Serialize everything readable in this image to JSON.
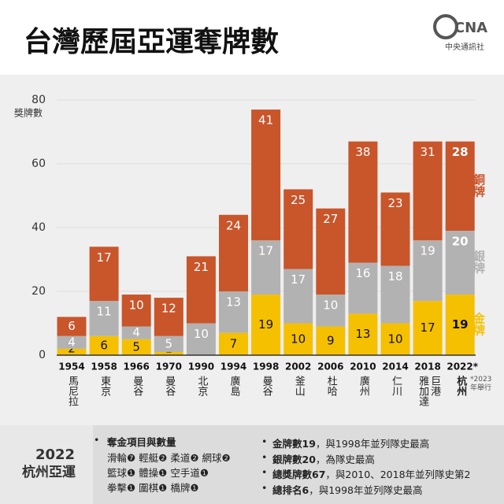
{
  "chart_data": {
    "type": "stacked-bar",
    "title": "台灣歷屆亞運奪牌數",
    "y_label": "獎牌數",
    "categories": [
      "1954",
      "1958",
      "1966",
      "1970",
      "1990",
      "1994",
      "1998",
      "2002",
      "2006",
      "2010",
      "2014",
      "2018",
      "2022*"
    ],
    "cities": [
      "馬尼拉",
      "東京",
      "曼谷",
      "曼谷",
      "北京",
      "廣島",
      "曼谷",
      "釜山",
      "杜哈",
      "廣州",
      "仁川",
      "雅加達巨港",
      "杭州"
    ],
    "series": [
      {
        "name": "金牌",
        "color": "#f5c000",
        "values": [
          2,
          6,
          5,
          1,
          0,
          7,
          19,
          10,
          9,
          13,
          10,
          17,
          19
        ]
      },
      {
        "name": "銀牌",
        "color": "#b2b2b2",
        "values": [
          4,
          11,
          4,
          5,
          10,
          13,
          17,
          17,
          10,
          16,
          18,
          19,
          20
        ]
      },
      {
        "name": "銅牌",
        "color": "#c9552b",
        "values": [
          6,
          17,
          10,
          12,
          21,
          24,
          41,
          25,
          27,
          38,
          23,
          31,
          28
        ]
      }
    ],
    "ylim": [
      0,
      80
    ],
    "yticks": [
      0,
      20,
      40,
      60,
      80
    ],
    "grid": true,
    "footnote": "*2023年舉行"
  },
  "logo": "中央通訊社",
  "logo_mark": "CNA",
  "panel": {
    "title_lines": [
      "2022",
      "杭州亞運"
    ],
    "left_heading": "奪金項目與數量",
    "left_lines": [
      "滑輪❼ 輕艇❷ 柔道❷ 網球❷",
      "籃球❶ 體操❶ 空手道❶",
      "拳擊❶ 圍棋❶ 橋牌❶"
    ],
    "right_items": [
      {
        "bold": "金牌數19",
        "rest": "，與1998年並列隊史最高"
      },
      {
        "bold": "銀牌數20",
        "rest": "，為隊史最高"
      },
      {
        "bold": "總獎牌數67",
        "rest": "，與2010、2018年並列隊史第2"
      },
      {
        "bold": "總排名6",
        "rest": "，與1998年並列隊史最高"
      }
    ]
  }
}
